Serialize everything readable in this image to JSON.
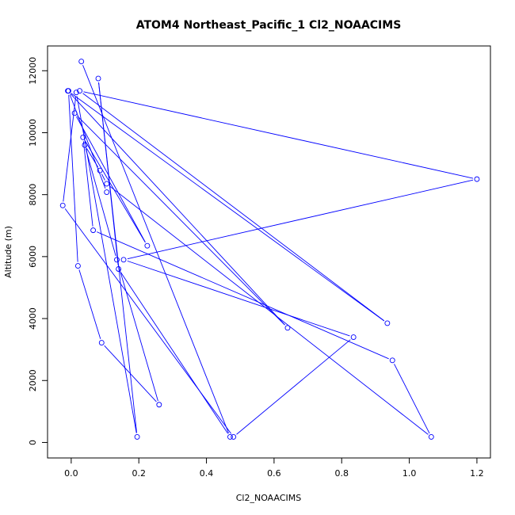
{
  "chart_data": {
    "type": "line",
    "title": "ATOM4 Northeast_Pacific_1 Cl2_NOAACIMS",
    "xlabel": "Cl2_NOAACIMS",
    "ylabel": "Altitude (m)",
    "xlim": [
      -0.07,
      1.24
    ],
    "ylim": [
      -500,
      12800
    ],
    "x_ticks": [
      0.0,
      0.2,
      0.4,
      0.6,
      0.8,
      1.0,
      1.2
    ],
    "x_tick_labels": [
      "0.0",
      "0.2",
      "0.4",
      "0.6",
      "0.8",
      "1.0",
      "1.2"
    ],
    "y_ticks": [
      0,
      2000,
      4000,
      6000,
      8000,
      10000,
      12000
    ],
    "y_tick_labels": [
      "0",
      "2000",
      "4000",
      "6000",
      "8000",
      "10000",
      "12000"
    ],
    "grid": false,
    "color": "#0000ff",
    "series": [
      {
        "x": [
          0.03,
          0.47,
          0.14,
          0.08,
          0.195,
          0.015,
          -0.025,
          0.48,
          0.835,
          0.155,
          1.2,
          0.025,
          0.935,
          -0.01,
          0.64,
          0.01,
          0.225,
          0.035,
          0.065,
          0.95,
          1.065,
          0.105,
          0.085,
          0.04,
          0.135,
          0.26,
          0.09,
          0.02,
          -0.008,
          0.105
        ],
        "y": [
          12300,
          180,
          5600,
          11750,
          180,
          11300,
          7650,
          180,
          3400,
          5900,
          8500,
          11350,
          3850,
          11350,
          3700,
          10630,
          6350,
          9850,
          6850,
          2650,
          180,
          8350,
          8780,
          9600,
          5900,
          1220,
          3220,
          5700,
          11350,
          8080
        ]
      }
    ]
  }
}
